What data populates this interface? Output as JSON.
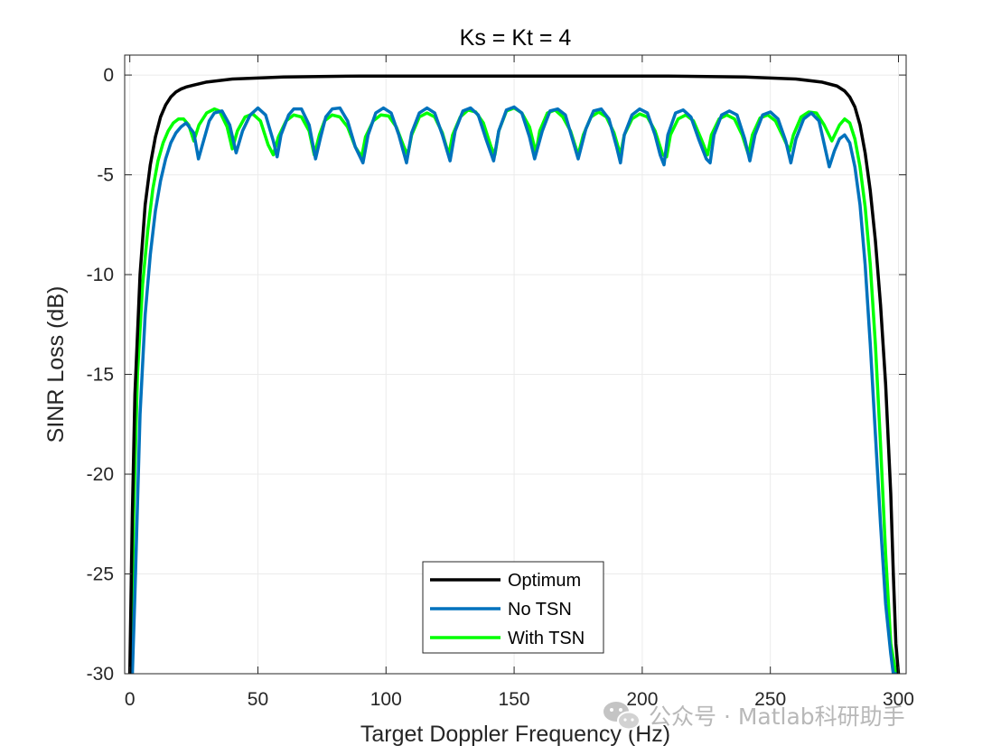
{
  "colors": {
    "Optimum": "#000000",
    "No TSN": "#0072BD",
    "With TSN": "#00FF00",
    "grid": "#ebebeb",
    "axis": "#262626"
  },
  "watermark": {
    "text": "公众号 · Matlab科研助手",
    "icon": "wechat-icon"
  },
  "chart_data": {
    "type": "line",
    "title": "Ks = Kt = 4",
    "xlabel": "Target Doppler Frequency (Hz)",
    "ylabel": "SINR Loss (dB)",
    "xlim": [
      -2,
      303
    ],
    "ylim": [
      -30,
      1
    ],
    "xticks": [
      0,
      50,
      100,
      150,
      200,
      250,
      300
    ],
    "xtick_labels": [
      "0",
      "50",
      "100",
      "150",
      "200",
      "250",
      "300"
    ],
    "yticks": [
      0,
      -5,
      -10,
      -15,
      -20,
      -25,
      -30
    ],
    "ytick_labels": [
      "0",
      "-5",
      "-10",
      "-15",
      "-20",
      "-25",
      "-30"
    ],
    "grid": true,
    "legend_position": "bottom-center",
    "series": [
      {
        "name": "Optimum",
        "x": [
          0,
          1,
          2,
          4,
          6,
          8,
          10,
          12,
          14,
          16,
          18,
          20,
          22,
          25,
          30,
          40,
          60,
          90,
          150,
          210,
          240,
          260,
          270,
          276,
          279,
          281,
          283,
          285,
          287,
          289,
          291,
          293,
          295,
          297,
          298,
          299,
          300
        ],
        "y": [
          -30,
          -22,
          -16,
          -10,
          -6.5,
          -4.5,
          -3.1,
          -2.1,
          -1.5,
          -1.1,
          -0.85,
          -0.7,
          -0.6,
          -0.5,
          -0.35,
          -0.2,
          -0.1,
          -0.05,
          -0.05,
          -0.05,
          -0.1,
          -0.2,
          -0.35,
          -0.55,
          -0.8,
          -1.1,
          -1.6,
          -2.5,
          -3.9,
          -5.8,
          -8.3,
          -11.5,
          -15.5,
          -21,
          -25,
          -28.5,
          -30
        ]
      },
      {
        "name": "No TSN",
        "x": [
          1,
          2,
          4,
          6,
          8,
          10,
          12,
          14,
          16,
          18,
          20,
          22,
          25,
          26.8,
          29,
          31,
          33,
          36,
          39,
          41.5,
          44,
          47,
          50,
          53,
          56,
          57.5,
          59,
          62,
          64,
          67,
          70,
          72.5,
          74.5,
          76.5,
          79,
          82,
          85,
          88,
          91,
          93,
          96,
          99,
          102,
          105,
          108,
          110,
          113,
          116,
          119,
          122,
          125,
          127,
          130,
          133,
          136,
          139,
          142,
          144,
          147,
          150,
          153,
          156,
          158,
          161,
          164,
          167,
          170,
          175,
          178,
          181,
          184,
          187,
          190,
          191.5,
          193,
          196,
          199,
          202,
          205,
          207,
          208.5,
          210,
          213,
          216,
          219,
          222,
          225,
          226.5,
          228,
          231,
          234,
          237,
          240,
          242,
          244,
          247,
          250,
          253,
          256,
          258,
          260,
          263,
          266,
          269,
          273,
          275,
          277,
          279,
          281,
          283,
          285,
          287,
          289,
          291,
          293,
          295,
          297,
          298,
          299
        ],
        "y": [
          -30,
          -26,
          -17,
          -12,
          -9,
          -6.8,
          -5.3,
          -4.2,
          -3.4,
          -2.9,
          -2.6,
          -2.4,
          -2.9,
          -4.2,
          -3.2,
          -2.3,
          -1.9,
          -1.8,
          -2.5,
          -3.9,
          -2.8,
          -2.0,
          -1.65,
          -2.0,
          -3.3,
          -4.1,
          -3.0,
          -2.0,
          -1.7,
          -1.7,
          -2.5,
          -4.2,
          -3.1,
          -2.1,
          -1.7,
          -1.65,
          -2.3,
          -3.6,
          -4.4,
          -3.0,
          -1.9,
          -1.65,
          -1.9,
          -3.0,
          -4.4,
          -2.9,
          -1.9,
          -1.65,
          -1.9,
          -3.0,
          -4.3,
          -2.8,
          -1.8,
          -1.65,
          -2.0,
          -3.2,
          -4.3,
          -2.8,
          -1.75,
          -1.6,
          -1.9,
          -3.1,
          -4.2,
          -2.8,
          -1.8,
          -1.7,
          -2.0,
          -4.2,
          -2.7,
          -1.8,
          -1.7,
          -2.2,
          -3.6,
          -4.4,
          -3.0,
          -2.0,
          -1.7,
          -1.9,
          -3.0,
          -4.0,
          -4.5,
          -3.0,
          -1.9,
          -1.75,
          -2.1,
          -3.2,
          -4.2,
          -4.4,
          -3.0,
          -2.0,
          -1.8,
          -2.0,
          -3.2,
          -4.3,
          -3.0,
          -2.0,
          -1.85,
          -2.2,
          -3.3,
          -4.4,
          -3.2,
          -2.2,
          -1.9,
          -2.3,
          -4.6,
          -3.8,
          -3.2,
          -3.0,
          -3.4,
          -4.6,
          -6.5,
          -9.5,
          -13.5,
          -18,
          -22.5,
          -26.5,
          -29,
          -30,
          -30
        ]
      },
      {
        "name": "With TSN",
        "x": [
          0.5,
          1.5,
          3,
          5,
          7,
          9,
          11,
          13,
          15,
          17,
          19,
          21,
          23,
          25,
          27,
          30,
          33,
          35,
          38,
          40,
          42,
          45,
          48,
          51,
          54,
          56,
          58,
          61,
          64,
          67,
          70,
          72,
          74,
          76,
          79,
          82,
          85,
          88,
          90.5,
          92,
          95,
          98,
          101,
          104,
          107,
          108.5,
          110,
          113,
          116,
          119,
          122,
          124.5,
          126,
          129,
          132,
          135,
          138,
          141,
          142.5,
          144,
          147,
          150,
          153,
          156,
          158.5,
          160,
          163,
          166,
          169,
          172,
          175,
          177,
          180,
          183,
          186,
          189,
          191.5,
          193,
          196,
          199,
          202,
          205,
          208,
          209.5,
          211,
          214,
          217,
          220,
          223,
          225.5,
          227,
          230,
          233,
          236,
          239,
          241.5,
          243,
          246,
          249,
          252,
          255,
          257.5,
          259,
          262,
          265,
          268,
          271,
          274,
          277,
          279,
          281,
          283,
          285,
          287,
          289,
          291,
          293,
          295,
          297,
          299
        ],
        "y": [
          -30,
          -22,
          -15,
          -10.5,
          -7.8,
          -5.7,
          -4.3,
          -3.4,
          -2.8,
          -2.4,
          -2.2,
          -2.2,
          -2.5,
          -3.3,
          -2.5,
          -1.9,
          -1.7,
          -1.8,
          -2.6,
          -3.7,
          -2.8,
          -2.1,
          -1.95,
          -2.3,
          -3.5,
          -4.0,
          -3.1,
          -2.3,
          -2.0,
          -2.1,
          -2.8,
          -4.0,
          -3.0,
          -2.3,
          -2.0,
          -2.1,
          -2.6,
          -3.6,
          -4.1,
          -3.1,
          -2.3,
          -2.0,
          -2.05,
          -2.6,
          -3.6,
          -4.0,
          -3.0,
          -2.1,
          -1.9,
          -2.1,
          -2.9,
          -4.0,
          -3.0,
          -2.1,
          -1.75,
          -1.85,
          -2.4,
          -3.6,
          -4.0,
          -2.8,
          -1.8,
          -1.65,
          -1.9,
          -2.6,
          -3.9,
          -2.8,
          -1.9,
          -1.75,
          -2.1,
          -2.8,
          -4.0,
          -3.0,
          -2.1,
          -1.85,
          -2.1,
          -2.9,
          -4.0,
          -3.0,
          -2.2,
          -1.95,
          -2.1,
          -2.8,
          -4.0,
          -4.1,
          -3.0,
          -2.2,
          -2.0,
          -2.3,
          -3.2,
          -4.0,
          -3.0,
          -2.2,
          -2.0,
          -2.2,
          -3.0,
          -4.0,
          -3.0,
          -2.15,
          -2.0,
          -2.3,
          -3.1,
          -3.8,
          -3.0,
          -2.1,
          -1.85,
          -1.9,
          -2.5,
          -3.3,
          -2.5,
          -2.2,
          -2.4,
          -3.2,
          -4.6,
          -6.6,
          -9.5,
          -13.5,
          -18.5,
          -24,
          -28.5,
          -30
        ]
      }
    ]
  }
}
